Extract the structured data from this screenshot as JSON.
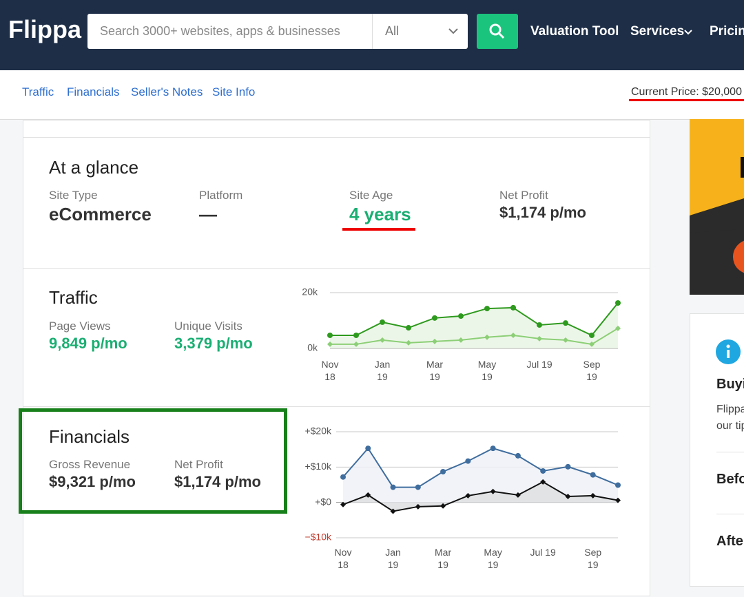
{
  "header": {
    "logo": "Flippa",
    "search_placeholder": "Search 3000+ websites, apps & businesses",
    "filter": "All",
    "nav": [
      "Valuation Tool",
      "Services",
      "Pricing"
    ]
  },
  "subnav": {
    "links": [
      "Traffic",
      "Financials",
      "Seller's Notes",
      "Site Info"
    ],
    "current_price": "Current Price: $20,000"
  },
  "glance": {
    "title": "At a glance",
    "items": [
      {
        "label": "Site Type",
        "value": "eCommerce"
      },
      {
        "label": "Platform",
        "value": "—"
      },
      {
        "label": "Site Age",
        "value": "4 years"
      },
      {
        "label": "Net Profit",
        "value": "$1,174 p/mo"
      }
    ]
  },
  "traffic": {
    "title": "Traffic",
    "stats": [
      {
        "label": "Page Views",
        "value": "9,849 p/mo"
      },
      {
        "label": "Unique Visits",
        "value": "3,379 p/mo"
      }
    ]
  },
  "financials": {
    "title": "Financials",
    "stats": [
      {
        "label": "Gross Revenue",
        "value": "$9,321 p/mo"
      },
      {
        "label": "Net Profit",
        "value": "$1,174 p/mo"
      }
    ]
  },
  "sidebar": {
    "heading": "Buyi",
    "lines": [
      "Flippa",
      "our tip"
    ],
    "items": [
      "Befo",
      "Afte"
    ]
  },
  "chart_data": [
    {
      "type": "line",
      "categories": [
        "Nov 18",
        null,
        "Jan 19",
        null,
        "Mar 19",
        null,
        "May 19",
        null,
        "Jul 19",
        null,
        "Sep 19",
        null
      ],
      "ylim": [
        0,
        20000
      ],
      "yticks": [
        {
          "value": 20000,
          "label": "20k"
        },
        {
          "value": 0,
          "label": "0k"
        }
      ],
      "grid": true,
      "series": [
        {
          "color": "#2e9a1e",
          "area_color": "#e9f4e4",
          "marker": "circle",
          "values": [
            4700,
            4700,
            9400,
            7400,
            10900,
            11600,
            14300,
            14600,
            8400,
            9100,
            4700,
            16300
          ]
        },
        {
          "color": "#8ccf76",
          "marker": "diamond",
          "values": [
            1500,
            1500,
            3000,
            2000,
            2500,
            3000,
            4000,
            4700,
            3500,
            3000,
            1500,
            7200
          ]
        }
      ]
    },
    {
      "type": "line",
      "categories": [
        "Nov 18",
        null,
        "Jan 19",
        null,
        "Mar 19",
        null,
        "May 19",
        null,
        "Jul 19",
        null,
        "Sep 19",
        null
      ],
      "ylim": [
        -10000,
        20000
      ],
      "yticks": [
        {
          "value": 20000,
          "label": "+$20k"
        },
        {
          "value": 10000,
          "label": "+$10k"
        },
        {
          "value": 0,
          "label": "+$0"
        },
        {
          "value": -10000,
          "label": "−$10k",
          "color": "#c0392b"
        }
      ],
      "grid": true,
      "series": [
        {
          "color": "#3f6d9e",
          "area_color": "#eef1f7",
          "marker": "circle",
          "values": [
            7200,
            15300,
            4300,
            4300,
            8700,
            11700,
            15300,
            13200,
            8900,
            10100,
            7800,
            4900
          ]
        },
        {
          "color": "#111111",
          "area_color": "#dedfe2",
          "marker": "diamond",
          "values": [
            -600,
            2100,
            -2500,
            -1200,
            -1000,
            1900,
            3100,
            2100,
            5800,
            1700,
            1900,
            600
          ]
        }
      ]
    }
  ]
}
